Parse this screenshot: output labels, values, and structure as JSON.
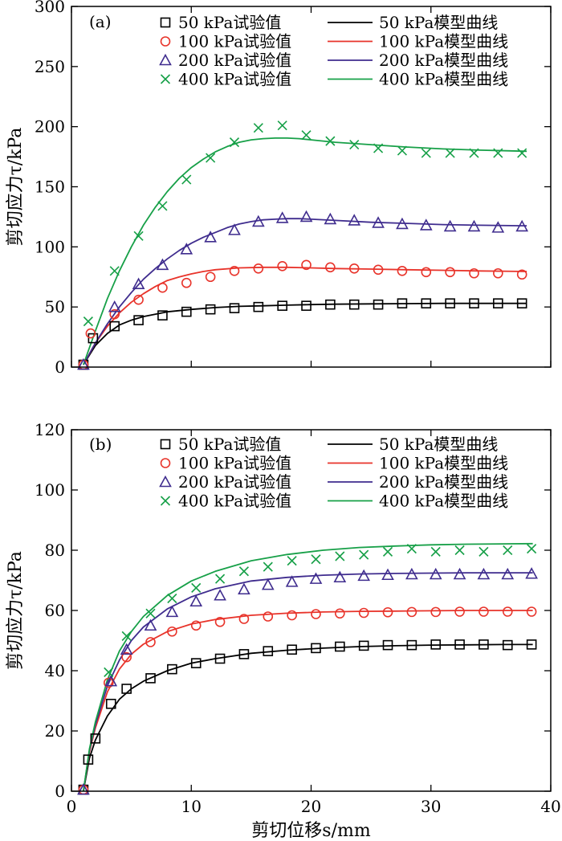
{
  "chart_data": [
    {
      "type": "scatter",
      "panel_label": "(a)",
      "xlabel": "",
      "ylabel": "剪切应力τ/kPa",
      "xlim": [
        0,
        40
      ],
      "ylim": [
        0,
        300
      ],
      "xticks": [
        0,
        10,
        20,
        30,
        40
      ],
      "yticks": [
        0,
        50,
        100,
        150,
        200,
        250,
        300
      ],
      "xtick_labels_shown": false,
      "grid": false,
      "legend_position": "top",
      "series": [
        {
          "name": "50 kPa试验值",
          "kind": "marker",
          "marker": "square",
          "color": "#000000",
          "x": [
            1,
            1.8,
            3.6,
            5.6,
            7.6,
            9.6,
            11.6,
            13.6,
            15.6,
            17.6,
            19.6,
            21.6,
            23.6,
            25.6,
            27.6,
            29.6,
            31.6,
            33.6,
            35.6,
            37.6
          ],
          "y": [
            2,
            24,
            34,
            39,
            43,
            46,
            48,
            49,
            50,
            51,
            51,
            52,
            52,
            52,
            53,
            53,
            53,
            53,
            53,
            53
          ]
        },
        {
          "name": "100 kPa试验值",
          "kind": "marker",
          "marker": "circle",
          "color": "#e8332a",
          "x": [
            1,
            1.6,
            3.6,
            5.6,
            7.6,
            9.6,
            11.6,
            13.6,
            15.6,
            17.6,
            19.6,
            21.6,
            23.6,
            25.6,
            27.6,
            29.6,
            31.6,
            33.6,
            35.6,
            37.6
          ],
          "y": [
            2,
            28,
            44,
            56,
            66,
            70,
            75,
            80,
            82,
            84,
            85,
            83,
            82,
            81,
            80,
            79,
            79,
            78,
            78,
            77
          ]
        },
        {
          "name": "200 kPa试验值",
          "kind": "marker",
          "marker": "triangle",
          "color": "#3f2c8e",
          "x": [
            1,
            3.6,
            5.6,
            7.6,
            9.6,
            11.6,
            13.6,
            15.6,
            17.6,
            19.6,
            21.6,
            23.6,
            25.6,
            27.6,
            29.6,
            31.6,
            33.6,
            35.6,
            37.6
          ],
          "y": [
            2,
            50,
            69,
            85,
            98,
            108,
            114,
            121,
            124,
            125,
            123,
            122,
            120,
            119,
            118,
            117,
            117,
            116,
            117
          ]
        },
        {
          "name": "400 kPa试验值",
          "kind": "marker",
          "marker": "cross",
          "color": "#17a048",
          "x": [
            1.4,
            3.6,
            5.6,
            7.6,
            9.6,
            11.6,
            13.6,
            15.6,
            17.6,
            19.6,
            21.6,
            23.6,
            25.6,
            27.6,
            29.6,
            31.6,
            33.6,
            35.6,
            37.6
          ],
          "y": [
            38,
            80,
            109,
            134,
            156,
            174,
            187,
            199,
            201,
            193,
            188,
            185,
            182,
            180,
            178,
            178,
            178,
            178,
            178
          ]
        },
        {
          "name": "50 kPa模型曲线",
          "kind": "line",
          "color": "#000000",
          "x": [
            1,
            2,
            3,
            4,
            5,
            6,
            8,
            10,
            12,
            14,
            16,
            18,
            20,
            22,
            25,
            28,
            31,
            34,
            38
          ],
          "y": [
            2,
            18,
            28,
            35,
            39,
            42,
            46,
            48,
            49.5,
            50.5,
            51,
            51.5,
            52,
            52.3,
            52.6,
            52.8,
            53,
            53,
            53
          ]
        },
        {
          "name": "100 kPa模型曲线",
          "kind": "line",
          "color": "#e8332a",
          "x": [
            1,
            2,
            3,
            4,
            5,
            6,
            7,
            8,
            9,
            10,
            11,
            12,
            14,
            16,
            18,
            20,
            22,
            25,
            28,
            31,
            34,
            38
          ],
          "y": [
            2,
            20,
            34,
            45,
            54,
            61,
            67,
            72,
            75,
            77.5,
            79.5,
            81,
            82.5,
            83,
            83,
            82.5,
            82,
            81.5,
            81,
            80.5,
            80,
            79.5
          ]
        },
        {
          "name": "200 kPa模型曲线",
          "kind": "line",
          "color": "#3f2c8e",
          "x": [
            1,
            2,
            3,
            4,
            5,
            6,
            7,
            8,
            9,
            10,
            11,
            12,
            13,
            14,
            15,
            16,
            17,
            18,
            19,
            20,
            22,
            25,
            28,
            31,
            34,
            38
          ],
          "y": [
            2,
            20,
            36,
            50,
            62,
            73,
            82,
            90,
            97,
            103,
            108,
            112,
            116,
            119,
            121,
            122.5,
            123,
            123.5,
            123.5,
            123,
            122,
            120.5,
            119.5,
            118.5,
            118,
            117.5
          ]
        },
        {
          "name": "400 kPa模型曲线",
          "kind": "line",
          "color": "#17a048",
          "x": [
            1,
            2,
            3,
            4,
            5,
            6,
            7,
            8,
            9,
            10,
            11,
            12,
            13,
            14,
            15,
            16,
            17,
            18,
            19,
            20,
            22,
            25,
            28,
            31,
            34,
            38
          ],
          "y": [
            2,
            30,
            57,
            80,
            100,
            118,
            133,
            146,
            157,
            166,
            173,
            179,
            183.5,
            187,
            189,
            190,
            190.5,
            190.5,
            190,
            189,
            187,
            185,
            183,
            181.5,
            180.5,
            179.5
          ]
        }
      ]
    },
    {
      "type": "scatter",
      "panel_label": "(b)",
      "xlabel": "剪切位移s/mm",
      "ylabel": "剪切应力τ/kPa",
      "xlim": [
        0,
        40
      ],
      "ylim": [
        0,
        120
      ],
      "xticks": [
        0,
        10,
        20,
        30,
        40
      ],
      "yticks": [
        0,
        20,
        40,
        60,
        80,
        100,
        120
      ],
      "xtick_labels_shown": true,
      "grid": false,
      "legend_position": "top",
      "series": [
        {
          "name": "50 kPa试验值",
          "kind": "marker",
          "marker": "square",
          "color": "#000000",
          "x": [
            1,
            1.4,
            2,
            3.3,
            4.6,
            6.6,
            8.4,
            10.4,
            12.4,
            14.4,
            16.4,
            18.4,
            20.4,
            22.4,
            24.4,
            26.4,
            28.4,
            30.4,
            32.4,
            34.4,
            36.4,
            38.4
          ],
          "y": [
            0.5,
            10.5,
            17.5,
            29,
            34,
            37.5,
            40.5,
            42.5,
            44,
            45.5,
            46.5,
            47,
            47.5,
            48,
            48.3,
            48.5,
            48.5,
            48.7,
            48.7,
            48.7,
            48.5,
            48.7
          ]
        },
        {
          "name": "100 kPa试验值",
          "kind": "marker",
          "marker": "circle",
          "color": "#e8332a",
          "x": [
            1,
            3.1,
            4.6,
            6.6,
            8.4,
            10.4,
            12.4,
            14.4,
            16.4,
            18.4,
            20.4,
            22.4,
            24.4,
            26.4,
            28.4,
            30.4,
            32.4,
            34.4,
            36.4,
            38.4
          ],
          "y": [
            0.5,
            36,
            44.5,
            49.5,
            53,
            55,
            56.2,
            57.2,
            58,
            58.4,
            58.8,
            59,
            59.2,
            59.4,
            59.5,
            59.5,
            59.6,
            59.6,
            59.6,
            59.6
          ]
        },
        {
          "name": "200 kPa试验值",
          "kind": "marker",
          "marker": "triangle",
          "color": "#3f2c8e",
          "x": [
            1,
            3.3,
            4.6,
            6.6,
            8.4,
            10.4,
            12.4,
            14.4,
            16.4,
            18.4,
            20.4,
            22.4,
            24.4,
            26.4,
            28.4,
            30.4,
            32.4,
            34.4,
            36.4,
            38.4
          ],
          "y": [
            0.5,
            36.5,
            47,
            55,
            59.5,
            63,
            65,
            67,
            68.5,
            69.5,
            70.5,
            71,
            71.5,
            71.8,
            72,
            72,
            72,
            72,
            72,
            72.2
          ]
        },
        {
          "name": "400 kPa试验值",
          "kind": "marker",
          "marker": "cross",
          "color": "#17a048",
          "x": [
            3.1,
            4.6,
            6.6,
            8.4,
            10.4,
            12.4,
            14.4,
            16.4,
            18.4,
            20.4,
            22.4,
            24.4,
            26.4,
            28.4,
            30.4,
            32.4,
            34.4,
            36.4,
            38.4
          ],
          "y": [
            39.5,
            51.5,
            59,
            64,
            67.5,
            70.5,
            73,
            74.5,
            76.5,
            77,
            78,
            78.5,
            79.5,
            80.5,
            79.5,
            80,
            79.5,
            80,
            80.5
          ]
        },
        {
          "name": "50 kPa模型曲线",
          "kind": "line",
          "color": "#000000",
          "x": [
            1,
            1.5,
            2,
            3,
            4,
            5,
            6,
            8,
            10,
            12,
            15,
            18,
            21,
            24,
            27,
            30,
            33,
            36,
            38.5
          ],
          "y": [
            0,
            11,
            17,
            25,
            30.5,
            34,
            36.5,
            40,
            42.5,
            44,
            45.8,
            46.8,
            47.5,
            48,
            48.3,
            48.5,
            48.6,
            48.7,
            48.7
          ]
        },
        {
          "name": "100 kPa模型曲线",
          "kind": "line",
          "color": "#e8332a",
          "x": [
            1,
            1.5,
            2,
            3,
            4,
            5,
            6,
            8,
            10,
            12,
            15,
            18,
            21,
            24,
            27,
            30,
            33,
            36,
            38.5
          ],
          "y": [
            0,
            13,
            21,
            33,
            40.5,
            45.5,
            48.8,
            53,
            55.5,
            57,
            58.4,
            59.1,
            59.5,
            59.7,
            59.8,
            59.9,
            60,
            60,
            60
          ]
        },
        {
          "name": "200 kPa模型曲线",
          "kind": "line",
          "color": "#3f2c8e",
          "x": [
            1,
            1.5,
            2,
            3,
            4,
            5,
            6,
            8,
            10,
            12,
            15,
            18,
            21,
            24,
            27,
            30,
            33,
            36,
            38.5
          ],
          "y": [
            0,
            13.5,
            22,
            35,
            43.5,
            50,
            54.5,
            60.5,
            64.5,
            67.2,
            69.8,
            71,
            71.7,
            72.1,
            72.3,
            72.4,
            72.5,
            72.5,
            72.5
          ]
        },
        {
          "name": "400 kPa模型曲线",
          "kind": "line",
          "color": "#17a048",
          "x": [
            1,
            1.5,
            2,
            3,
            4,
            5,
            6,
            8,
            10,
            12,
            15,
            18,
            21,
            24,
            27,
            30,
            33,
            36,
            38.5
          ],
          "y": [
            0,
            14,
            23,
            37,
            46.5,
            53,
            58,
            65,
            69.8,
            73,
            76.5,
            78.6,
            80,
            80.9,
            81.4,
            81.8,
            82,
            82.1,
            82.2
          ]
        }
      ]
    }
  ]
}
